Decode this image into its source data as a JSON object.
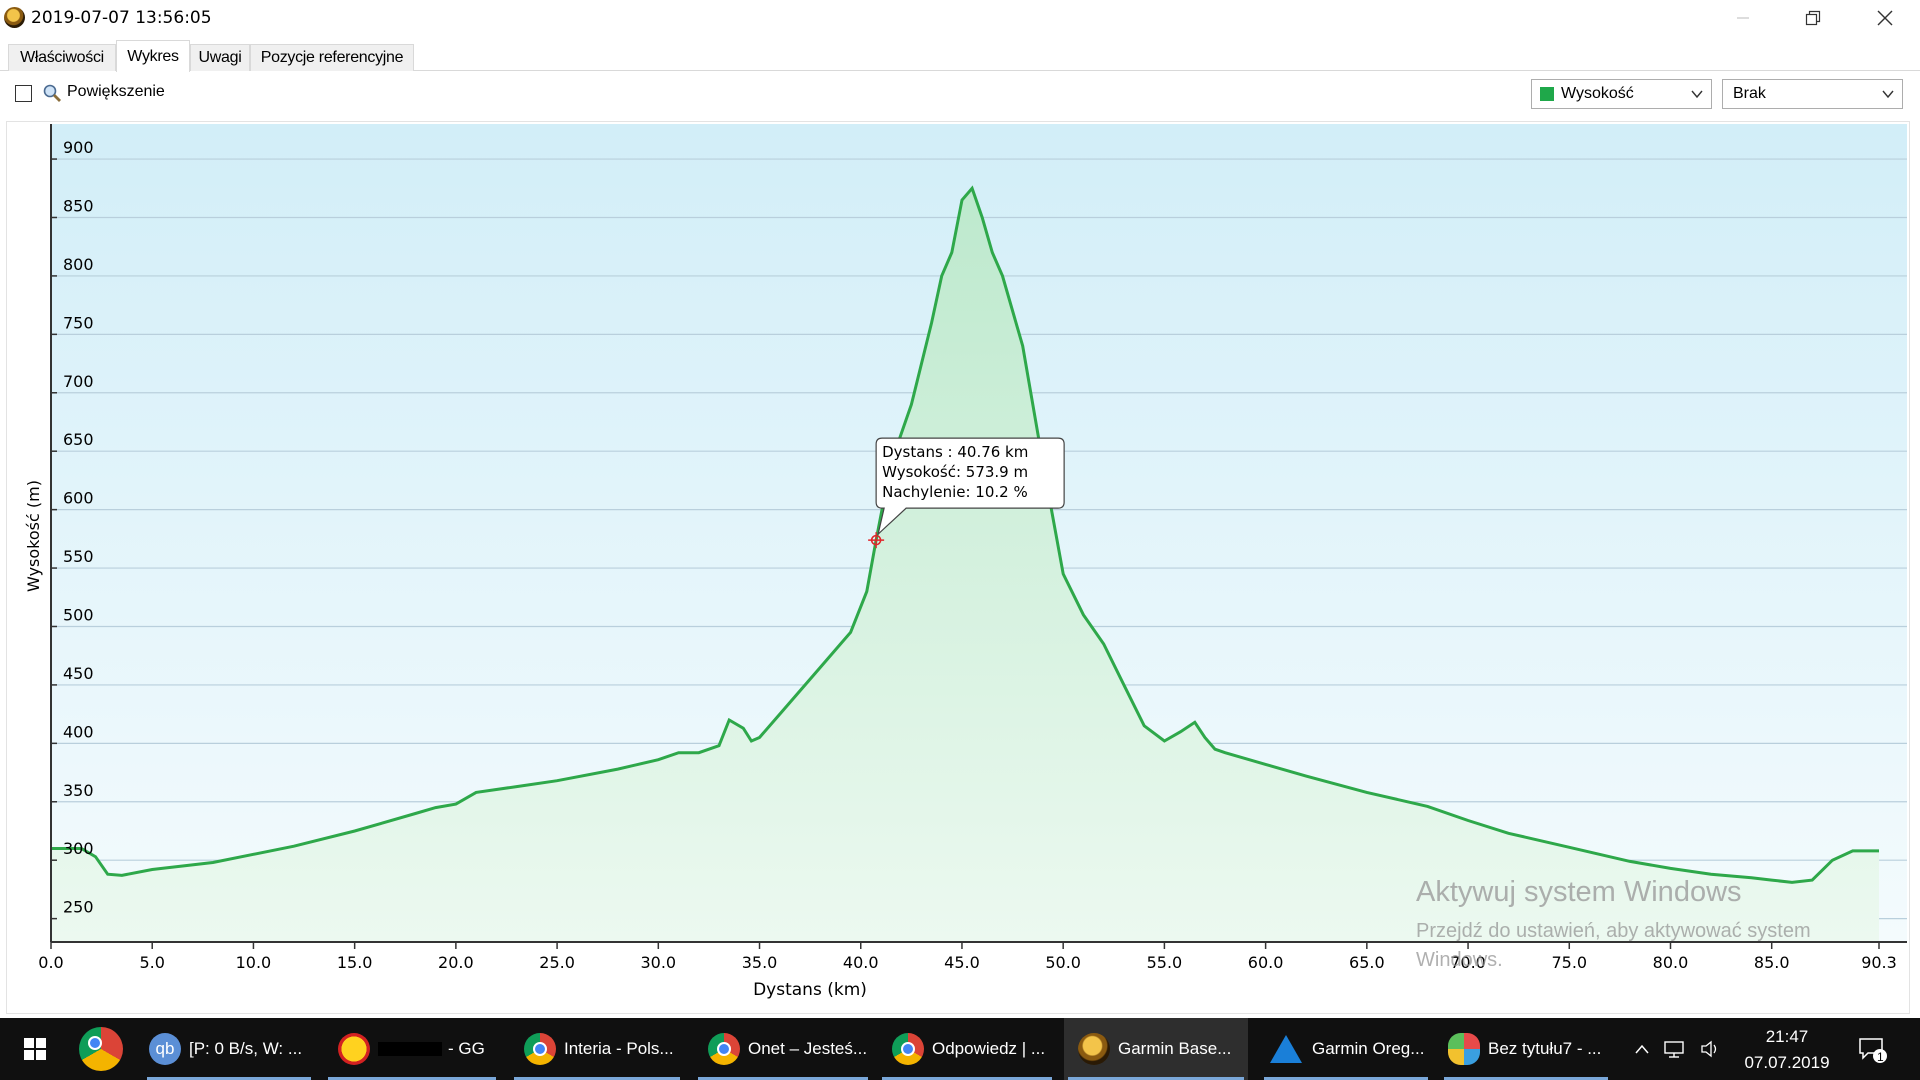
{
  "window": {
    "title": "2019-07-07 13:56:05"
  },
  "tabs": [
    "Właściwości",
    "Wykres",
    "Uwagi",
    "Pozycje referencyjne"
  ],
  "active_tab": "Wykres",
  "toolbar": {
    "zoom_label": "Powiększenie",
    "zoom_checked": false,
    "series_select": "Wysokość",
    "series_color": "#1fa84a",
    "secondary_select": "Brak"
  },
  "tooltip": {
    "line1": "Dystans : 40.76 km",
    "line2": "Wysokość: 573.9 m",
    "line3": "Nachylenie: 10.2 %"
  },
  "watermark": {
    "title": "Aktywuj system Windows",
    "text": "Przejdź do ustawień, aby aktywować system Windows."
  },
  "chart_data": {
    "type": "area",
    "xlabel": "Dystans (km)",
    "ylabel": "Wysokość (m)",
    "xlim": [
      0,
      90.3
    ],
    "ylim": [
      230,
      930
    ],
    "x_ticks": [
      "0.0",
      "5.0",
      "10.0",
      "15.0",
      "20.0",
      "25.0",
      "30.0",
      "35.0",
      "40.0",
      "45.0",
      "50.0",
      "55.0",
      "60.0",
      "65.0",
      "70.0",
      "75.0",
      "80.0",
      "85.0",
      "90.3"
    ],
    "y_ticks": [
      250,
      300,
      350,
      400,
      450,
      500,
      550,
      600,
      650,
      700,
      750,
      800,
      850,
      900
    ],
    "line_color": "#2ea84a",
    "grid": true,
    "series": [
      {
        "x": [
          0,
          1.5,
          2.2,
          2.8,
          3.5,
          5,
          8,
          12,
          15,
          18,
          19,
          20,
          21,
          23,
          25,
          28,
          30,
          31,
          32,
          33,
          33.5,
          34.2,
          34.6,
          35,
          36,
          38,
          39.5,
          40.3,
          40.76,
          41.5,
          42.5,
          43.5,
          44,
          44.5,
          45,
          45.5,
          46,
          46.5,
          47,
          48,
          49,
          50,
          51,
          52,
          53,
          54,
          55,
          55.8,
          56.5,
          57,
          57.5,
          58,
          60,
          62,
          65,
          68,
          70,
          72,
          75,
          78,
          80,
          82,
          84,
          85,
          86,
          87,
          88,
          89,
          90.3
        ],
        "y": [
          310,
          310,
          303,
          288,
          287,
          292,
          298,
          312,
          325,
          340,
          345,
          348,
          358,
          363,
          368,
          378,
          386,
          392,
          392,
          398,
          420,
          413,
          402,
          405,
          425,
          465,
          495,
          530,
          573.9,
          640,
          690,
          760,
          800,
          820,
          865,
          875,
          850,
          820,
          800,
          740,
          640,
          545,
          510,
          485,
          450,
          415,
          402,
          410,
          418,
          405,
          395,
          392,
          382,
          372,
          358,
          346,
          334,
          323,
          311,
          299,
          293,
          288,
          285,
          283,
          281,
          283,
          300,
          308,
          308
        ]
      }
    ],
    "highlight_point": {
      "x": 40.76,
      "y": 573.9,
      "slope": 10.2
    }
  },
  "taskbar": {
    "items": [
      {
        "label": "",
        "icon": "chrome-icon"
      },
      {
        "label": "[P: 0 B/s, W: ...",
        "icon": "qbittorrent-icon"
      },
      {
        "label": "- GG",
        "icon": "gg-icon"
      },
      {
        "label": "Interia - Pols...",
        "icon": "chrome-icon"
      },
      {
        "label": "Onet – Jesteś...",
        "icon": "chrome-icon"
      },
      {
        "label": "Odpowiedz | ...",
        "icon": "chrome-icon"
      },
      {
        "label": "Garmin Base...",
        "icon": "garmin-basecamp-icon"
      },
      {
        "label": "Garmin Oreg...",
        "icon": "garmin-oregon-icon"
      },
      {
        "label": "Bez tytułu7 - ...",
        "icon": "paint-icon"
      }
    ],
    "clock_time": "21:47",
    "clock_date": "07.07.2019",
    "notification_count": "1"
  }
}
